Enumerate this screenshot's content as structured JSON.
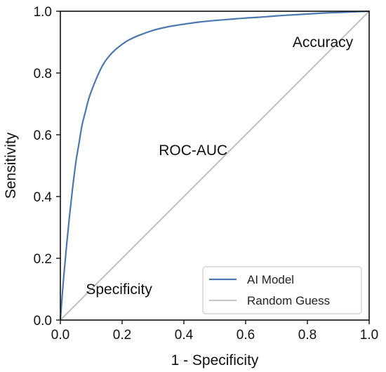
{
  "chart_data": {
    "type": "line",
    "title": "",
    "xlabel": "1 - Specificity",
    "ylabel": "Sensitivity",
    "xlim": [
      0,
      1
    ],
    "ylim": [
      0,
      1
    ],
    "x_ticks": [
      0.0,
      0.2,
      0.4,
      0.6,
      0.8,
      1.0
    ],
    "y_ticks": [
      0.0,
      0.2,
      0.4,
      0.6,
      0.8,
      1.0
    ],
    "x_tick_labels": [
      "0.0",
      "0.2",
      "0.4",
      "0.6",
      "0.8",
      "1.0"
    ],
    "y_tick_labels": [
      "0.0",
      "0.2",
      "0.4",
      "0.6",
      "0.8",
      "1.0"
    ],
    "grid": false,
    "legend_position": "bottom-right",
    "series": [
      {
        "name": "AI Model",
        "color": "#4a78b0",
        "x": [
          0,
          0.01,
          0.02,
          0.03,
          0.04,
          0.05,
          0.06,
          0.07,
          0.08,
          0.09,
          0.1,
          0.12,
          0.14,
          0.16,
          0.18,
          0.2,
          0.22,
          0.25,
          0.3,
          0.35,
          0.4,
          0.45,
          0.5,
          0.55,
          0.6,
          0.65,
          0.7,
          0.75,
          0.8,
          0.85,
          0.9,
          0.95,
          1.0
        ],
        "y": [
          0,
          0.13,
          0.24,
          0.34,
          0.43,
          0.51,
          0.57,
          0.63,
          0.67,
          0.71,
          0.74,
          0.79,
          0.83,
          0.857,
          0.877,
          0.893,
          0.906,
          0.92,
          0.938,
          0.95,
          0.958,
          0.965,
          0.97,
          0.974,
          0.978,
          0.981,
          0.985,
          0.988,
          0.991,
          0.994,
          0.996,
          0.998,
          1.0
        ]
      },
      {
        "name": "Random Guess",
        "color": "#c4c4c4",
        "x": [
          0,
          1
        ],
        "y": [
          0,
          1
        ]
      }
    ],
    "annotations": [
      {
        "text": "Accuracy",
        "x": 0.85,
        "y": 0.9
      },
      {
        "text": "ROC-AUC",
        "x": 0.43,
        "y": 0.55
      },
      {
        "text": "Specificity",
        "x": 0.19,
        "y": 0.1
      }
    ]
  }
}
